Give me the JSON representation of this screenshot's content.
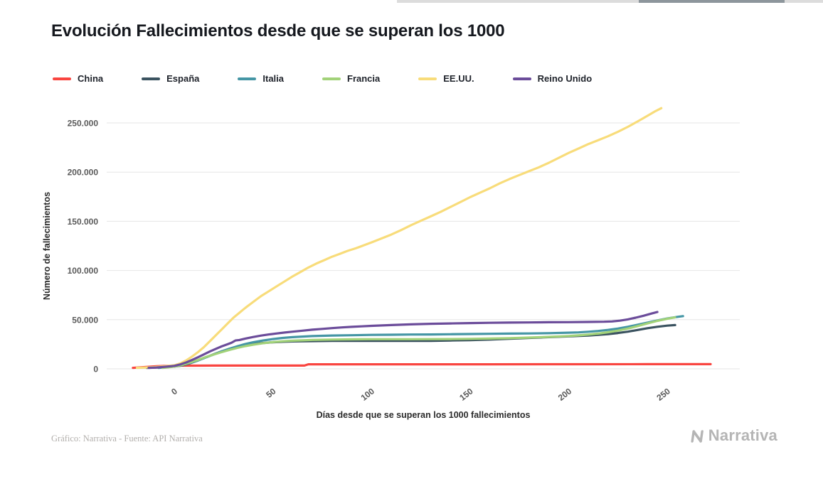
{
  "chart_data": {
    "type": "line",
    "title": "Evolución Fallecimientos desde que se superan los 1000",
    "xlabel": "Días desde que se superan los 1000 fallecimientos",
    "ylabel": "Número de fallecimientos",
    "x_ticks": [
      0,
      50,
      100,
      150,
      200,
      250
    ],
    "y_ticks": [
      0,
      50000,
      100000,
      150000,
      200000,
      250000
    ],
    "xlim": [
      -34.3,
      286.8
    ],
    "ylim": [
      0,
      266600
    ],
    "grid": "horizontal",
    "legend_position": "top",
    "series": [
      {
        "name": "China",
        "color": "#f94540",
        "points": [
          [
            -21,
            1000
          ],
          [
            -17,
            1600
          ],
          [
            -13,
            2100
          ],
          [
            -9,
            2600
          ],
          [
            -4,
            3000
          ],
          [
            0,
            3170
          ],
          [
            5,
            3220
          ],
          [
            10,
            3260
          ],
          [
            20,
            3310
          ],
          [
            40,
            3330
          ],
          [
            66,
            3340
          ],
          [
            68,
            4630
          ],
          [
            90,
            4640
          ],
          [
            120,
            4640
          ],
          [
            160,
            4650
          ],
          [
            200,
            4700
          ],
          [
            240,
            4740
          ],
          [
            272,
            4750
          ]
        ]
      },
      {
        "name": "España",
        "color": "#3b5360",
        "points": [
          [
            -14,
            1000
          ],
          [
            -10,
            1300
          ],
          [
            -5,
            1700
          ],
          [
            0,
            2300
          ],
          [
            4,
            3500
          ],
          [
            8,
            5700
          ],
          [
            12,
            8500
          ],
          [
            16,
            11700
          ],
          [
            20,
            14800
          ],
          [
            24,
            17800
          ],
          [
            28,
            20400
          ],
          [
            32,
            22500
          ],
          [
            36,
            24100
          ],
          [
            40,
            25300
          ],
          [
            45,
            26300
          ],
          [
            50,
            27000
          ],
          [
            55,
            27500
          ],
          [
            60,
            27900
          ],
          [
            70,
            28200
          ],
          [
            80,
            28400
          ],
          [
            100,
            28400
          ],
          [
            120,
            28400
          ],
          [
            130,
            28500
          ],
          [
            140,
            28800
          ],
          [
            150,
            29200
          ],
          [
            160,
            29800
          ],
          [
            170,
            30600
          ],
          [
            180,
            31400
          ],
          [
            190,
            32200
          ],
          [
            200,
            33000
          ],
          [
            210,
            33900
          ],
          [
            215,
            34500
          ],
          [
            220,
            35300
          ],
          [
            225,
            36400
          ],
          [
            230,
            37800
          ],
          [
            235,
            39500
          ],
          [
            240,
            41300
          ],
          [
            245,
            42800
          ],
          [
            250,
            43900
          ],
          [
            254,
            44500
          ]
        ]
      },
      {
        "name": "Italia",
        "color": "#4596a5",
        "points": [
          [
            -8,
            1000
          ],
          [
            -4,
            1600
          ],
          [
            0,
            2500
          ],
          [
            4,
            4000
          ],
          [
            8,
            6000
          ],
          [
            12,
            8500
          ],
          [
            16,
            11600
          ],
          [
            20,
            14700
          ],
          [
            24,
            17700
          ],
          [
            28,
            20500
          ],
          [
            32,
            23000
          ],
          [
            36,
            25200
          ],
          [
            40,
            27000
          ],
          [
            45,
            28800
          ],
          [
            50,
            30300
          ],
          [
            55,
            31400
          ],
          [
            60,
            32200
          ],
          [
            65,
            32800
          ],
          [
            70,
            33300
          ],
          [
            75,
            33600
          ],
          [
            80,
            33900
          ],
          [
            90,
            34200
          ],
          [
            100,
            34500
          ],
          [
            110,
            34700
          ],
          [
            120,
            34900
          ],
          [
            130,
            35000
          ],
          [
            140,
            35200
          ],
          [
            150,
            35400
          ],
          [
            160,
            35600
          ],
          [
            170,
            35800
          ],
          [
            180,
            36000
          ],
          [
            190,
            36300
          ],
          [
            200,
            36800
          ],
          [
            205,
            37100
          ],
          [
            210,
            37700
          ],
          [
            215,
            38500
          ],
          [
            220,
            39600
          ],
          [
            225,
            41000
          ],
          [
            230,
            42800
          ],
          [
            235,
            44800
          ],
          [
            240,
            47000
          ],
          [
            245,
            49200
          ],
          [
            250,
            51200
          ],
          [
            255,
            52800
          ],
          [
            258,
            53600
          ]
        ]
      },
      {
        "name": "Francia",
        "color": "#a2d279",
        "points": [
          [
            -6,
            1000
          ],
          [
            -2,
            1800
          ],
          [
            0,
            2300
          ],
          [
            4,
            4000
          ],
          [
            8,
            6500
          ],
          [
            12,
            9000
          ],
          [
            16,
            12000
          ],
          [
            20,
            14500
          ],
          [
            24,
            17000
          ],
          [
            28,
            19300
          ],
          [
            32,
            21300
          ],
          [
            36,
            23100
          ],
          [
            40,
            24600
          ],
          [
            45,
            26100
          ],
          [
            50,
            27200
          ],
          [
            55,
            28000
          ],
          [
            60,
            28600
          ],
          [
            65,
            29000
          ],
          [
            70,
            29400
          ],
          [
            80,
            29800
          ],
          [
            90,
            30000
          ],
          [
            100,
            30100
          ],
          [
            120,
            30100
          ],
          [
            130,
            30200
          ],
          [
            140,
            30300
          ],
          [
            150,
            30500
          ],
          [
            160,
            30800
          ],
          [
            170,
            31200
          ],
          [
            180,
            31800
          ],
          [
            190,
            32500
          ],
          [
            200,
            33400
          ],
          [
            205,
            34000
          ],
          [
            210,
            34800
          ],
          [
            215,
            35800
          ],
          [
            220,
            37200
          ],
          [
            225,
            38900
          ],
          [
            230,
            41000
          ],
          [
            235,
            43500
          ],
          [
            240,
            46200
          ],
          [
            245,
            48800
          ],
          [
            250,
            50900
          ],
          [
            254,
            52300
          ]
        ]
      },
      {
        "name": "EE.UU.",
        "color": "#f8dc7a",
        "points": [
          [
            -19,
            1000
          ],
          [
            -15,
            1300
          ],
          [
            -10,
            1800
          ],
          [
            -5,
            2500
          ],
          [
            0,
            3600
          ],
          [
            3,
            5500
          ],
          [
            6,
            8500
          ],
          [
            9,
            12500
          ],
          [
            12,
            17000
          ],
          [
            15,
            22000
          ],
          [
            18,
            28000
          ],
          [
            21,
            34000
          ],
          [
            24,
            40000
          ],
          [
            27,
            46000
          ],
          [
            30,
            52000
          ],
          [
            33,
            57000
          ],
          [
            36,
            62000
          ],
          [
            40,
            68000
          ],
          [
            44,
            74000
          ],
          [
            48,
            79000
          ],
          [
            52,
            84000
          ],
          [
            56,
            89000
          ],
          [
            60,
            94000
          ],
          [
            64,
            98500
          ],
          [
            68,
            103000
          ],
          [
            72,
            107000
          ],
          [
            76,
            110500
          ],
          [
            80,
            114000
          ],
          [
            84,
            117000
          ],
          [
            88,
            120000
          ],
          [
            92,
            122500
          ],
          [
            96,
            125500
          ],
          [
            100,
            128500
          ],
          [
            105,
            132500
          ],
          [
            110,
            136500
          ],
          [
            115,
            141000
          ],
          [
            120,
            146000
          ],
          [
            125,
            150500
          ],
          [
            130,
            155000
          ],
          [
            135,
            159500
          ],
          [
            140,
            164500
          ],
          [
            145,
            169500
          ],
          [
            150,
            174500
          ],
          [
            155,
            179000
          ],
          [
            160,
            183500
          ],
          [
            165,
            188500
          ],
          [
            170,
            193000
          ],
          [
            175,
            197000
          ],
          [
            180,
            201000
          ],
          [
            185,
            205000
          ],
          [
            190,
            209500
          ],
          [
            195,
            214500
          ],
          [
            200,
            219500
          ],
          [
            205,
            224000
          ],
          [
            210,
            228500
          ],
          [
            215,
            232500
          ],
          [
            220,
            236500
          ],
          [
            225,
            241000
          ],
          [
            230,
            246000
          ],
          [
            235,
            251500
          ],
          [
            238,
            255000
          ],
          [
            241,
            258500
          ],
          [
            244,
            262000
          ],
          [
            247,
            265000
          ]
        ]
      },
      {
        "name": "Reino Unido",
        "color": "#6b4c9a",
        "points": [
          [
            -13,
            1000
          ],
          [
            -9,
            1400
          ],
          [
            -5,
            2000
          ],
          [
            0,
            3000
          ],
          [
            3,
            4500
          ],
          [
            6,
            6500
          ],
          [
            9,
            9000
          ],
          [
            12,
            11800
          ],
          [
            15,
            14700
          ],
          [
            18,
            17600
          ],
          [
            21,
            20300
          ],
          [
            24,
            22800
          ],
          [
            27,
            25000
          ],
          [
            29,
            26500
          ],
          [
            31,
            28800
          ],
          [
            33,
            29300
          ],
          [
            36,
            30800
          ],
          [
            40,
            32400
          ],
          [
            44,
            33800
          ],
          [
            48,
            35000
          ],
          [
            52,
            36000
          ],
          [
            56,
            36900
          ],
          [
            60,
            37800
          ],
          [
            65,
            38800
          ],
          [
            70,
            39800
          ],
          [
            75,
            40600
          ],
          [
            80,
            41400
          ],
          [
            85,
            42100
          ],
          [
            90,
            42700
          ],
          [
            95,
            43200
          ],
          [
            100,
            43700
          ],
          [
            110,
            44500
          ],
          [
            120,
            45200
          ],
          [
            130,
            45800
          ],
          [
            140,
            46200
          ],
          [
            150,
            46500
          ],
          [
            160,
            46800
          ],
          [
            170,
            47000
          ],
          [
            180,
            47200
          ],
          [
            190,
            47400
          ],
          [
            200,
            47500
          ],
          [
            210,
            47700
          ],
          [
            218,
            47900
          ],
          [
            222,
            48200
          ],
          [
            226,
            49000
          ],
          [
            230,
            50300
          ],
          [
            234,
            52000
          ],
          [
            238,
            54000
          ],
          [
            242,
            56200
          ],
          [
            245,
            57800
          ]
        ]
      }
    ]
  },
  "footer": {
    "credit": "Gráfico: Narrativa - Fuente: API Narrativa",
    "brand": "Narrativa"
  },
  "colors": {
    "grid": "#e6e6e6",
    "background": "#ffffff",
    "tick_label": "#5a5a5a",
    "title": "#15181e"
  }
}
